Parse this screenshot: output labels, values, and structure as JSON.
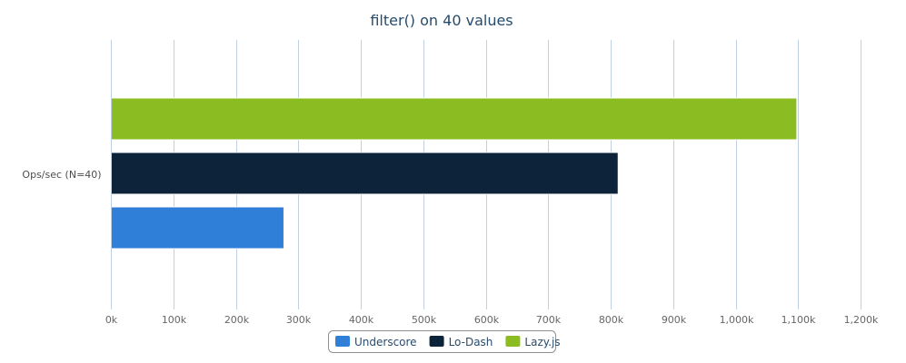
{
  "chart_data": {
    "type": "bar",
    "orientation": "horizontal",
    "title": "filter() on 40 values",
    "categories": [
      "Ops/sec (N=40)"
    ],
    "series": [
      {
        "name": "Underscore",
        "values": [
          277000
        ],
        "color": "#2f7ed8"
      },
      {
        "name": "Lo-Dash",
        "values": [
          812000
        ],
        "color": "#0d233a"
      },
      {
        "name": "Lazy.js",
        "values": [
          1098000
        ],
        "color": "#8bbc21"
      }
    ],
    "xlim": [
      0,
      1200000
    ],
    "x_ticks": [
      "0k",
      "100k",
      "200k",
      "300k",
      "400k",
      "500k",
      "600k",
      "700k",
      "800k",
      "900k",
      "1,000k",
      "1,100k",
      "1,200k"
    ],
    "grid": true,
    "legend": "bottom-center"
  }
}
